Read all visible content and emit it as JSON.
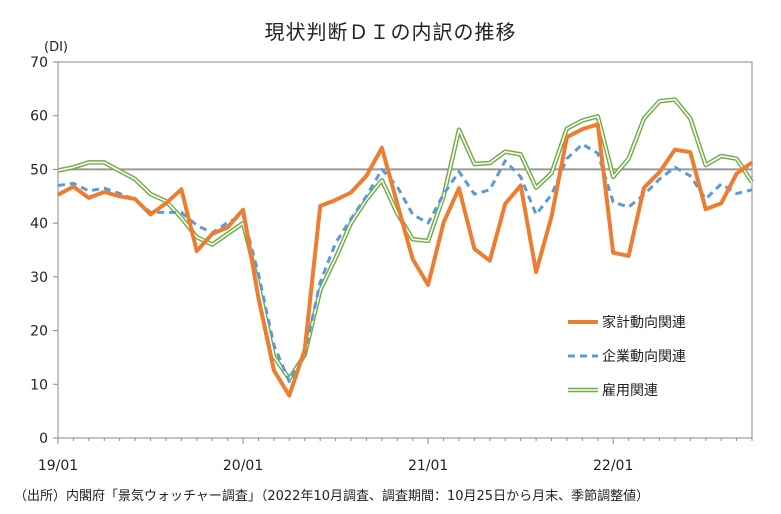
{
  "title": "現状判断ＤＩの内訳の推移",
  "unit_label": "(DI)",
  "source": "（出所）内閣府「景気ウォッチャー調査」（2022年10月調査、調査期間：10月25日から月末、季節調整値）",
  "chart_data": {
    "type": "line",
    "title": "現状判断ＤＩの内訳の推移",
    "ylabel": "(DI)",
    "ylim": [
      0,
      70
    ],
    "yticks": [
      0,
      10,
      20,
      30,
      40,
      50,
      60,
      70
    ],
    "x_tick_labels": [
      "19/01",
      "20/01",
      "21/01",
      "22/01"
    ],
    "x_tick_index": [
      0,
      12,
      24,
      36
    ],
    "reference_line": 50,
    "legend_position": "right-middle",
    "x": [
      "19/01",
      "19/02",
      "19/03",
      "19/04",
      "19/05",
      "19/06",
      "19/07",
      "19/08",
      "19/09",
      "19/10",
      "19/11",
      "19/12",
      "20/01",
      "20/02",
      "20/03",
      "20/04",
      "20/05",
      "20/06",
      "20/07",
      "20/08",
      "20/09",
      "20/10",
      "20/11",
      "20/12",
      "21/01",
      "21/02",
      "21/03",
      "21/04",
      "21/05",
      "21/06",
      "21/07",
      "21/08",
      "21/09",
      "21/10",
      "21/11",
      "21/12",
      "22/01",
      "22/02",
      "22/03",
      "22/04",
      "22/05",
      "22/06",
      "22/07",
      "22/08",
      "22/09",
      "22/10"
    ],
    "series": [
      {
        "name": "家計動向関連",
        "color": "#ed7d31",
        "style": "solid",
        "values": [
          45.3,
          46.8,
          44.7,
          45.8,
          45.0,
          44.5,
          41.6,
          43.7,
          46.3,
          34.8,
          38.0,
          39.2,
          42.5,
          26.0,
          12.6,
          7.9,
          16.5,
          43.2,
          44.3,
          45.7,
          48.8,
          54.0,
          43.6,
          33.3,
          28.5,
          40.1,
          46.5,
          35.2,
          33.0,
          43.6,
          47.0,
          30.9,
          41.2,
          56.0,
          57.5,
          58.4,
          34.5,
          33.9,
          46.6,
          49.5,
          53.7,
          53.2,
          42.6,
          43.7,
          49.2,
          51.3
        ]
      },
      {
        "name": "企業動向関連",
        "color": "#5b9bd5",
        "style": "dashed",
        "values": [
          47.0,
          47.4,
          46.0,
          46.5,
          45.5,
          44.4,
          42.0,
          42.0,
          42.0,
          39.6,
          38.2,
          40.1,
          41.5,
          30.5,
          17.3,
          10.5,
          15.8,
          29.0,
          36.3,
          40.8,
          45.0,
          50.0,
          46.8,
          41.6,
          40.0,
          45.4,
          49.6,
          45.4,
          46.2,
          51.6,
          48.6,
          41.6,
          45.3,
          52.0,
          54.7,
          53.0,
          43.9,
          43.0,
          45.3,
          48.2,
          50.4,
          48.8,
          44.5,
          47.3,
          45.5,
          46.2
        ]
      },
      {
        "name": "雇用関連",
        "color": "#70ad47",
        "style": "double",
        "values": [
          49.8,
          50.4,
          51.3,
          51.3,
          49.7,
          48.2,
          45.4,
          44.1,
          41.0,
          37.4,
          36.0,
          38.0,
          40.0,
          28.5,
          15.2,
          11.0,
          15.5,
          27.5,
          33.5,
          40.0,
          44.4,
          48.0,
          41.8,
          37.0,
          36.7,
          45.0,
          57.4,
          51.0,
          51.2,
          53.3,
          52.8,
          46.6,
          49.3,
          57.6,
          59.1,
          59.9,
          48.6,
          52.0,
          59.5,
          62.7,
          63.0,
          59.5,
          50.8,
          52.5,
          52.0,
          47.6
        ]
      }
    ]
  }
}
